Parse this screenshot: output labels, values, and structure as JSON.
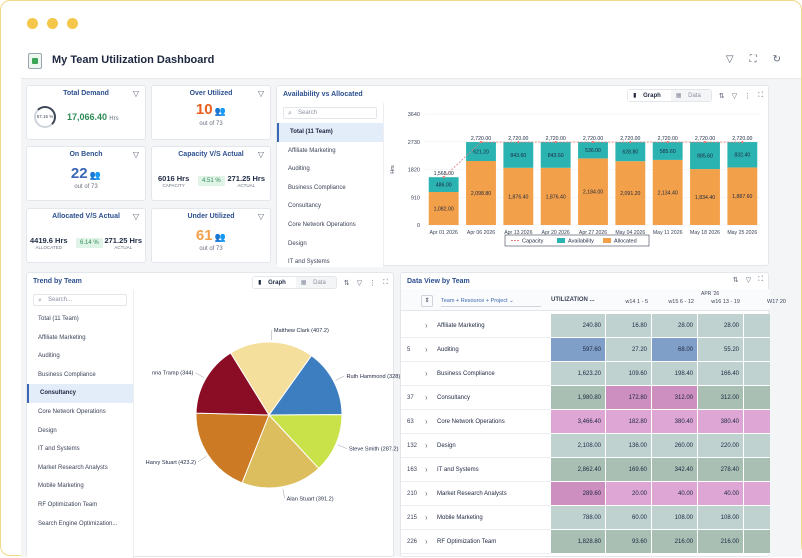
{
  "app": {
    "title": "My Team Utilization Dashboard"
  },
  "kpis": {
    "total_demand": {
      "title": "Total Demand",
      "percent": "57.15 %",
      "value": "17,066.40",
      "unit": "Hrs"
    },
    "over_utilized": {
      "title": "Over Utilized",
      "value": "10",
      "sub": "out of 73"
    },
    "on_bench": {
      "title": "On Bench",
      "value": "22",
      "sub": "out of 73"
    },
    "capacity": {
      "title": "Capacity V/S Actual",
      "left_value": "6016 Hrs",
      "left_label": "CAPACITY",
      "badge": "4.51 %",
      "right_value": "271.25 Hrs",
      "right_label": "ACTUAL"
    },
    "allocated": {
      "title": "Allocated V/S Actual",
      "left_value": "4419.6 Hrs",
      "left_label": "ALLOCATED",
      "badge": "6.14 %",
      "right_value": "271.25 Hrs",
      "right_label": "ACTUAL"
    },
    "under_utilized": {
      "title": "Under Utilized",
      "value": "61",
      "sub": "out of 73"
    }
  },
  "colors": {
    "accent": "#2c4f8f",
    "availability": "#2bb3b1",
    "allocated": "#f3a04a",
    "over": "#e8601c",
    "green": "#2e8b57"
  },
  "toggle": {
    "graph": "Graph",
    "data": "Data"
  },
  "search_placeholder": "Search",
  "search_placeholder2": "Search...",
  "availability": {
    "title": "Availability vs Allocated",
    "teams": [
      "Total (11 Team)",
      "Affiliate Marketing",
      "Auditing",
      "Business Compliance",
      "Consultancy",
      "Core Network Operations",
      "Design",
      "IT and Systems"
    ]
  },
  "trend": {
    "title": "Trend by Team",
    "teams": [
      "Total (11 Team)",
      "Affiliate Marketing",
      "Auditing",
      "Business Compliance",
      "Consultancy",
      "Core Network Operations",
      "Design",
      "IT and Systems",
      "Market Research Analysts",
      "Mobile Marketing",
      "RF Optimization Team",
      "Search Engine Optimization..."
    ]
  },
  "chart_data": [
    {
      "type": "bar",
      "stacked": true,
      "categories": [
        "Apr 01 2026",
        "Apr 06 2026",
        "Apr 13 2026",
        "Apr 20 2026",
        "Apr 27 2026",
        "May 04 2026",
        "May 11 2026",
        "May 18 2026",
        "May 25 2026"
      ],
      "ylabel": "Hrs",
      "yticks": [
        "0",
        "910",
        "1820",
        "2730",
        "3640"
      ],
      "ylim": [
        0,
        3640
      ],
      "series": [
        {
          "name": "Allocated",
          "values": [
            1082.0,
            2098.8,
            1876.4,
            1876.4,
            2184.0,
            2091.2,
            2134.4,
            1834.4,
            1887.6
          ],
          "labels": [
            "1,082.00",
            "2,098.80",
            "1,876.40",
            "1,876.40",
            "2,184.00",
            "2,091.20",
            "2,134.40",
            "1,834.40",
            "1,887.60"
          ]
        },
        {
          "name": "Availability",
          "values": [
            486.0,
            621.2,
            843.6,
            843.6,
            536.0,
            628.8,
            585.6,
            885.6,
            832.4
          ],
          "labels": [
            "486.00",
            "621.20",
            "843.60",
            "843.60",
            "536.00",
            "628.80",
            "585.60",
            "885.60",
            "832.40"
          ]
        }
      ],
      "capacity": {
        "name": "Capacity",
        "values": [
          1568.0,
          2720.0,
          2720.0,
          2720.0,
          2720.0,
          2720.0,
          2720.0,
          2720.0,
          2720.0
        ],
        "labels": [
          "1,568.00",
          "2,720.00",
          "2,720.00",
          "2,720.00",
          "2,720.00",
          "2,720.00",
          "2,720.00",
          "2,720.00",
          "2,720.00"
        ]
      },
      "legend": [
        "Capacity",
        "Availability",
        "Allocated"
      ],
      "legend_position": "bottom"
    },
    {
      "type": "pie",
      "slices": [
        {
          "label": "Ruth Hammond (328)",
          "value": 328,
          "color": "#3d7ec0"
        },
        {
          "label": "Steve Smith (287.2)",
          "value": 287.2,
          "color": "#c9e24a"
        },
        {
          "label": "Alan Stuart (391.2)",
          "value": 391.2,
          "color": "#dcbe5e"
        },
        {
          "label": "Harvy Stuart (423.2)",
          "value": 423.2,
          "color": "#cc7a23"
        },
        {
          "label": "nna Tramp (344)",
          "value": 344,
          "color": "#8a0c25"
        },
        {
          "label": "Matthew Clark (407.2)",
          "value": 407.2,
          "color": "#f5df9c"
        }
      ]
    }
  ],
  "dataview": {
    "title": "Data View by Team",
    "group_label": "Team + Resource + Project",
    "utilization_header": "UTILIZATION ...",
    "month_label": "APR '26",
    "week_headers": [
      "w14 1 - 5",
      "w15 6 - 12",
      "w16 13 - 19",
      "W17 20"
    ],
    "rows": [
      {
        "num": "",
        "name": "Affiliate Marketing",
        "util": "240.80",
        "w14": "16.80",
        "w15": "28.00",
        "w16": "28.00"
      },
      {
        "num": "5",
        "name": "Auditing",
        "util": "597.60",
        "w14": "27.20",
        "w15": "68.00",
        "w16": "55.20"
      },
      {
        "num": "",
        "name": "Business Compliance",
        "util": "1,623.20",
        "w14": "109.60",
        "w15": "198.40",
        "w16": "166.40"
      },
      {
        "num": "37",
        "name": "Consultancy",
        "util": "1,980.80",
        "w14": "172.80",
        "w15": "312.00",
        "w16": "312.00"
      },
      {
        "num": "63",
        "name": "Core Network Operations",
        "util": "3,466.40",
        "w14": "182.80",
        "w15": "380.40",
        "w16": "380.40"
      },
      {
        "num": "132",
        "name": "Design",
        "util": "2,108.00",
        "w14": "136.00",
        "w15": "260.00",
        "w16": "220.00"
      },
      {
        "num": "163",
        "name": "IT and Systems",
        "util": "2,862.40",
        "w14": "169.60",
        "w15": "342.40",
        "w16": "278.40"
      },
      {
        "num": "210",
        "name": "Market Research Analysts",
        "util": "289.60",
        "w14": "20.00",
        "w15": "40.00",
        "w16": "40.00"
      },
      {
        "num": "215",
        "name": "Mobile Marketing",
        "util": "788.00",
        "w14": "60.00",
        "w15": "108.00",
        "w16": "108.00"
      },
      {
        "num": "226",
        "name": "RF Optimization Team",
        "util": "1,828.80",
        "w14": "93.60",
        "w15": "216.00",
        "w16": "216.00"
      }
    ]
  }
}
